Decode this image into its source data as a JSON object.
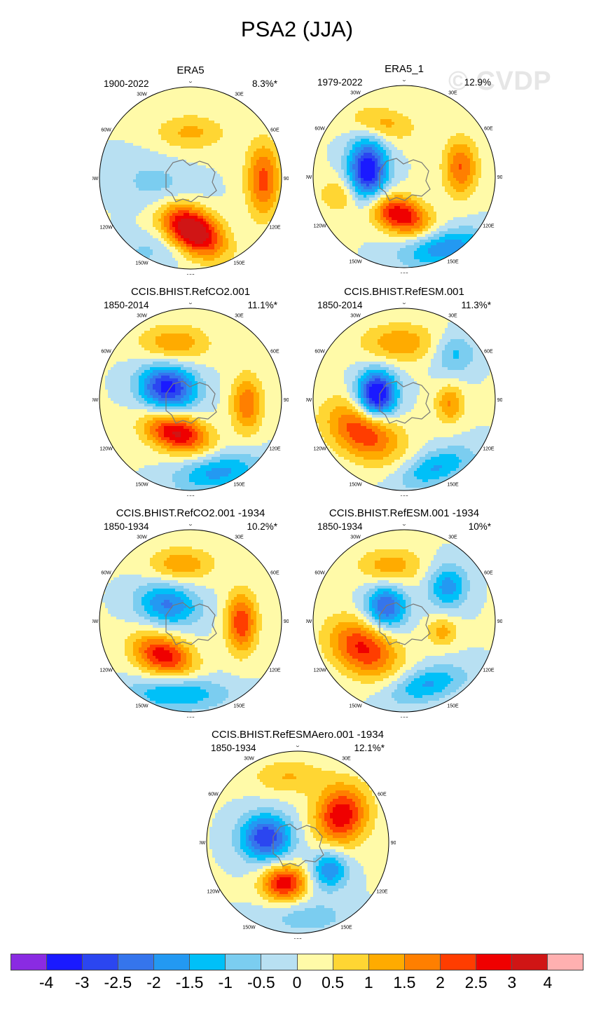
{
  "title": "PSA2 (JJA)",
  "watermark": "© CVDP",
  "panels": [
    {
      "title": "ERA5",
      "period": "1900-2022",
      "percent": "8.3%*",
      "blobs": [
        {
          "dx": 0.02,
          "dy": 0.57,
          "sx": 0.26,
          "sy": 0.16,
          "rot": 35,
          "amp": 4.0
        },
        {
          "dx": 0.8,
          "dy": 0.02,
          "sx": 0.13,
          "sy": 0.28,
          "rot": 0,
          "amp": 2.2
        },
        {
          "dx": 0.0,
          "dy": -0.5,
          "sx": 0.27,
          "sy": 0.14,
          "rot": 0,
          "amp": 1.1
        },
        {
          "dx": -0.35,
          "dy": 0.1,
          "sx": 0.32,
          "sy": 0.2,
          "rot": 20,
          "amp": -0.8
        },
        {
          "dx": -0.45,
          "dy": 0.8,
          "sx": 0.28,
          "sy": 0.14,
          "rot": 0,
          "amp": -0.6
        }
      ]
    },
    {
      "title": "ERA5_1",
      "period": "1979-2022",
      "percent": "12.9%",
      "blobs": [
        {
          "dx": -0.4,
          "dy": -0.07,
          "sx": 0.15,
          "sy": 0.24,
          "rot": 0,
          "amp": -3.6
        },
        {
          "dx": -0.05,
          "dy": 0.42,
          "sx": 0.24,
          "sy": 0.14,
          "rot": 20,
          "amp": 3.0
        },
        {
          "dx": 0.45,
          "dy": 0.78,
          "sx": 0.34,
          "sy": 0.14,
          "rot": -10,
          "amp": -1.9
        },
        {
          "dx": 0.62,
          "dy": -0.1,
          "sx": 0.13,
          "sy": 0.22,
          "rot": 0,
          "amp": 2.0
        },
        {
          "dx": -0.25,
          "dy": -0.58,
          "sx": 0.26,
          "sy": 0.13,
          "rot": 10,
          "amp": 1.2
        },
        {
          "dx": -0.72,
          "dy": 0.2,
          "sx": 0.15,
          "sy": 0.14,
          "rot": 0,
          "amp": 1.0
        }
      ]
    },
    {
      "title": "CCIS.BHIST.RefCO2.001",
      "period": "1850-2014",
      "percent": "11.1%*",
      "blobs": [
        {
          "dx": -0.25,
          "dy": -0.13,
          "sx": 0.22,
          "sy": 0.17,
          "rot": 10,
          "amp": -3.3
        },
        {
          "dx": -0.15,
          "dy": 0.37,
          "sx": 0.25,
          "sy": 0.14,
          "rot": 15,
          "amp": 3.1
        },
        {
          "dx": -0.18,
          "dy": -0.62,
          "sx": 0.27,
          "sy": 0.14,
          "rot": 0,
          "amp": 1.4
        },
        {
          "dx": 0.62,
          "dy": 0.05,
          "sx": 0.12,
          "sy": 0.22,
          "rot": 0,
          "amp": 1.9
        },
        {
          "dx": 0.3,
          "dy": 0.8,
          "sx": 0.33,
          "sy": 0.14,
          "rot": -10,
          "amp": -1.7
        }
      ]
    },
    {
      "title": "CCIS.BHIST.RefESM.001",
      "period": "1850-2014",
      "percent": "11.3%*",
      "blobs": [
        {
          "dx": -0.3,
          "dy": -0.05,
          "sx": 0.15,
          "sy": 0.18,
          "rot": 0,
          "amp": -4.0
        },
        {
          "dx": -0.45,
          "dy": 0.35,
          "sx": 0.3,
          "sy": 0.2,
          "rot": 30,
          "amp": 2.5
        },
        {
          "dx": -0.05,
          "dy": -0.62,
          "sx": 0.3,
          "sy": 0.15,
          "rot": 0,
          "amp": 1.4
        },
        {
          "dx": 0.5,
          "dy": 0.05,
          "sx": 0.11,
          "sy": 0.15,
          "rot": 0,
          "amp": 1.5
        },
        {
          "dx": 0.55,
          "dy": -0.5,
          "sx": 0.16,
          "sy": 0.16,
          "rot": 0,
          "amp": -1.2
        },
        {
          "dx": 0.35,
          "dy": 0.75,
          "sx": 0.3,
          "sy": 0.13,
          "rot": -20,
          "amp": -1.6
        }
      ]
    },
    {
      "title": "CCIS.BHIST.RefCO2.001 -1934",
      "period": "1850-1934",
      "percent": "10.2%*",
      "blobs": [
        {
          "dx": -0.25,
          "dy": -0.18,
          "sx": 0.24,
          "sy": 0.16,
          "rot": 10,
          "amp": -2.1
        },
        {
          "dx": -0.3,
          "dy": 0.38,
          "sx": 0.24,
          "sy": 0.15,
          "rot": 20,
          "amp": 2.8
        },
        {
          "dx": -0.1,
          "dy": -0.62,
          "sx": 0.25,
          "sy": 0.13,
          "rot": 0,
          "amp": 1.4
        },
        {
          "dx": 0.56,
          "dy": 0.02,
          "sx": 0.12,
          "sy": 0.23,
          "rot": 0,
          "amp": 2.4
        },
        {
          "dx": -0.15,
          "dy": 0.8,
          "sx": 0.38,
          "sy": 0.13,
          "rot": 0,
          "amp": -1.6
        }
      ]
    },
    {
      "title": "CCIS.BHIST.RefESM.001 -1934",
      "period": "1850-1934",
      "percent": "10%*",
      "blobs": [
        {
          "dx": -0.2,
          "dy": -0.15,
          "sx": 0.16,
          "sy": 0.17,
          "rot": 0,
          "amp": -2.6
        },
        {
          "dx": -0.45,
          "dy": 0.3,
          "sx": 0.28,
          "sy": 0.2,
          "rot": 30,
          "amp": 2.6
        },
        {
          "dx": -0.15,
          "dy": -0.6,
          "sx": 0.25,
          "sy": 0.14,
          "rot": 0,
          "amp": 1.3
        },
        {
          "dx": 0.48,
          "dy": -0.38,
          "sx": 0.15,
          "sy": 0.17,
          "rot": 0,
          "amp": -1.8
        },
        {
          "dx": 0.42,
          "dy": 0.12,
          "sx": 0.12,
          "sy": 0.11,
          "rot": 0,
          "amp": 1.2
        },
        {
          "dx": 0.25,
          "dy": 0.7,
          "sx": 0.3,
          "sy": 0.13,
          "rot": -15,
          "amp": -1.6
        }
      ]
    },
    {
      "title": "CCIS.BHIST.RefESMAero.001 -1934",
      "period": "1850-1934",
      "percent": "12.1%*",
      "blobs": [
        {
          "dx": -0.35,
          "dy": -0.05,
          "sx": 0.2,
          "sy": 0.18,
          "rot": 0,
          "amp": -3.0
        },
        {
          "dx": -0.15,
          "dy": 0.45,
          "sx": 0.17,
          "sy": 0.14,
          "rot": 0,
          "amp": 2.9
        },
        {
          "dx": 0.48,
          "dy": -0.3,
          "sx": 0.2,
          "sy": 0.23,
          "rot": 20,
          "amp": 2.9
        },
        {
          "dx": 0.35,
          "dy": 0.3,
          "sx": 0.14,
          "sy": 0.15,
          "rot": 0,
          "amp": -2.0
        },
        {
          "dx": -0.1,
          "dy": -0.72,
          "sx": 0.28,
          "sy": 0.13,
          "rot": 0,
          "amp": 1.0
        },
        {
          "dx": 0.1,
          "dy": 0.82,
          "sx": 0.35,
          "sy": 0.14,
          "rot": 0,
          "amp": -0.8
        }
      ]
    }
  ],
  "lon_labels": [
    "0",
    "30E",
    "60E",
    "90E",
    "120E",
    "150E",
    "180",
    "150W",
    "120W",
    "90W",
    "60W",
    "30W"
  ],
  "colorbar": {
    "colors": [
      "#8a2be2",
      "#1a1aff",
      "#2b46f0",
      "#3575ec",
      "#2399f2",
      "#00c0f8",
      "#7bcdf0",
      "#b8e0f2",
      "#fffaa8",
      "#ffd633",
      "#ffab00",
      "#ff7f00",
      "#ff3d00",
      "#ef0000",
      "#d01515",
      "#ffb0b0"
    ],
    "labels": [
      "-4",
      "-3",
      "-2.5",
      "-2",
      "-1.5",
      "-1",
      "-0.5",
      "0",
      "0.5",
      "1",
      "1.5",
      "2",
      "2.5",
      "3",
      "4"
    ]
  }
}
